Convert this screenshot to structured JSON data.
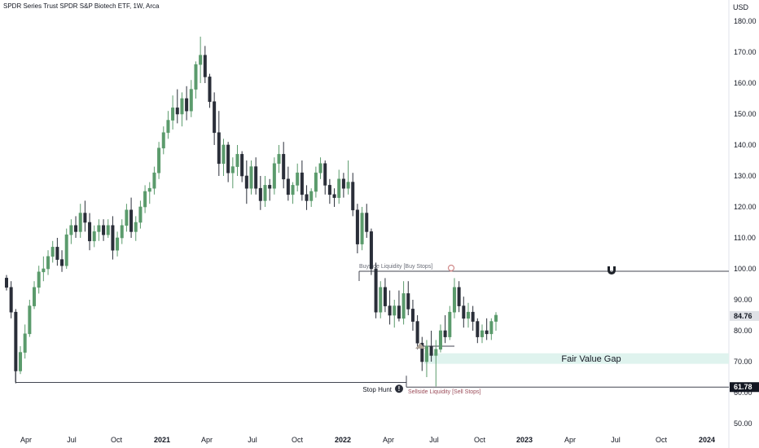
{
  "header": {
    "title": "SPDR Series Trust SPDR S&P Biotech ETF, 1W, Arca",
    "currency": "USD"
  },
  "colors": {
    "up": "#5b9b6c",
    "down": "#2a2e39",
    "fvg_fill": "#dff3ee",
    "line": "#434651",
    "price_badge": "#dfe1e6",
    "axis_text": "#131722"
  },
  "chart_data": {
    "type": "candlestick",
    "title": "SPDR Series Trust SPDR S&P Biotech ETF, 1W, Arca",
    "xlabel": "",
    "ylabel": "USD",
    "ylim": [
      47,
      183
    ],
    "x_ticks": [
      "Apr",
      "Jul",
      "Oct",
      "2021",
      "Apr",
      "Jul",
      "Oct",
      "2022",
      "Apr",
      "Jul",
      "Oct",
      "2023",
      "Apr",
      "Jul",
      "Oct",
      "2024"
    ],
    "y_ticks": [
      50,
      60,
      70,
      80,
      90,
      100,
      110,
      120,
      130,
      140,
      150,
      160,
      170,
      180
    ],
    "y_tick_labels": [
      "50.00",
      "60.00",
      "70.00",
      "80.00",
      "90.00",
      "100.00",
      "110.00",
      "120.00",
      "130.00",
      "140.00",
      "150.00",
      "160.00",
      "170.00",
      "180.00"
    ],
    "candles": [
      [
        97,
        98,
        93,
        94
      ],
      [
        94,
        96,
        84,
        86
      ],
      [
        86,
        87,
        63,
        67
      ],
      [
        67,
        75,
        66,
        73
      ],
      [
        73,
        82,
        71,
        79
      ],
      [
        79,
        90,
        78,
        88
      ],
      [
        88,
        96,
        87,
        94
      ],
      [
        94,
        101,
        92,
        99
      ],
      [
        99,
        104,
        96,
        100
      ],
      [
        100,
        106,
        98,
        104
      ],
      [
        104,
        109,
        102,
        107
      ],
      [
        107,
        110,
        101,
        103
      ],
      [
        103,
        106,
        99,
        101
      ],
      [
        101,
        113,
        100,
        111
      ],
      [
        111,
        116,
        108,
        114
      ],
      [
        114,
        117,
        110,
        112
      ],
      [
        112,
        121,
        110,
        118
      ],
      [
        118,
        122,
        112,
        115
      ],
      [
        115,
        118,
        106,
        109
      ],
      [
        109,
        114,
        107,
        112
      ],
      [
        112,
        116,
        109,
        114
      ],
      [
        114,
        116,
        109,
        111
      ],
      [
        111,
        116,
        110,
        114
      ],
      [
        114,
        117,
        103,
        106
      ],
      [
        106,
        112,
        104,
        110
      ],
      [
        110,
        116,
        108,
        114
      ],
      [
        114,
        121,
        112,
        119
      ],
      [
        119,
        123,
        110,
        112
      ],
      [
        112,
        117,
        109,
        115
      ],
      [
        115,
        122,
        113,
        120
      ],
      [
        120,
        127,
        118,
        125
      ],
      [
        125,
        128,
        121,
        126
      ],
      [
        126,
        133,
        124,
        131
      ],
      [
        131,
        141,
        129,
        139
      ],
      [
        139,
        146,
        137,
        144
      ],
      [
        144,
        151,
        142,
        148
      ],
      [
        148,
        156,
        145,
        152
      ],
      [
        152,
        158,
        147,
        150
      ],
      [
        150,
        157,
        146,
        155
      ],
      [
        155,
        159,
        148,
        151
      ],
      [
        151,
        161,
        149,
        158
      ],
      [
        158,
        167,
        155,
        166
      ],
      [
        166,
        175,
        160,
        169
      ],
      [
        169,
        172,
        160,
        162
      ],
      [
        162,
        163,
        152,
        154
      ],
      [
        154,
        157,
        140,
        144
      ],
      [
        144,
        151,
        130,
        134
      ],
      [
        134,
        142,
        130,
        140
      ],
      [
        140,
        141,
        128,
        131
      ],
      [
        131,
        136,
        126,
        133
      ],
      [
        133,
        140,
        130,
        137
      ],
      [
        137,
        138,
        128,
        130
      ],
      [
        130,
        135,
        121,
        126
      ],
      [
        126,
        135,
        124,
        133
      ],
      [
        133,
        136,
        124,
        126
      ],
      [
        126,
        130,
        119,
        122
      ],
      [
        122,
        130,
        120,
        127
      ],
      [
        127,
        129,
        122,
        126
      ],
      [
        126,
        136,
        124,
        134
      ],
      [
        134,
        140,
        131,
        137
      ],
      [
        137,
        141,
        126,
        129
      ],
      [
        129,
        133,
        122,
        124
      ],
      [
        124,
        128,
        121,
        127
      ],
      [
        127,
        134,
        125,
        131
      ],
      [
        131,
        135,
        122,
        124
      ],
      [
        124,
        127,
        119,
        122
      ],
      [
        122,
        126,
        120,
        125
      ],
      [
        125,
        133,
        123,
        131
      ],
      [
        131,
        136,
        129,
        134
      ],
      [
        134,
        135,
        124,
        127
      ],
      [
        127,
        129,
        121,
        124
      ],
      [
        124,
        126,
        120,
        123
      ],
      [
        123,
        132,
        121,
        129
      ],
      [
        129,
        131,
        123,
        126
      ],
      [
        126,
        135,
        124,
        128
      ],
      [
        128,
        131,
        117,
        119
      ],
      [
        119,
        121,
        105,
        108
      ],
      [
        108,
        120,
        106,
        118
      ],
      [
        118,
        121,
        110,
        112
      ],
      [
        112,
        113,
        98,
        100
      ],
      [
        100,
        102,
        84,
        86
      ],
      [
        86,
        96,
        84,
        94
      ],
      [
        94,
        97,
        86,
        88
      ],
      [
        88,
        93,
        82,
        85
      ],
      [
        85,
        90,
        81,
        88
      ],
      [
        88,
        93,
        83,
        84
      ],
      [
        84,
        96,
        82,
        92
      ],
      [
        92,
        96,
        85,
        87
      ],
      [
        87,
        90,
        80,
        83
      ],
      [
        83,
        85,
        74,
        76
      ],
      [
        76,
        78,
        67,
        70
      ],
      [
        70,
        77,
        65,
        75
      ],
      [
        75,
        80,
        70,
        72
      ],
      [
        72,
        77,
        62,
        74
      ],
      [
        74,
        82,
        73,
        80
      ],
      [
        80,
        85,
        76,
        78
      ],
      [
        78,
        88,
        77,
        86
      ],
      [
        86,
        97,
        84,
        94
      ],
      [
        94,
        96,
        86,
        88
      ],
      [
        88,
        91,
        81,
        84
      ],
      [
        84,
        89,
        81,
        86
      ],
      [
        86,
        88,
        80,
        83
      ],
      [
        83,
        84,
        76,
        78
      ],
      [
        78,
        82,
        76,
        80
      ],
      [
        80,
        84,
        77,
        79
      ],
      [
        79,
        84,
        77,
        83
      ],
      [
        83,
        86,
        80,
        85
      ]
    ],
    "levels": [
      {
        "label": "Buyside Liquidity [Buy Stops]",
        "price": 99.2
      },
      {
        "label": "Sellside Liquidity [Sell Stops]",
        "price": 61.78
      },
      {
        "label": "",
        "price": 63.3
      }
    ],
    "annotations": {
      "fvg_label": "Fair Value Gap",
      "fvg_range": [
        69.3,
        72.7
      ],
      "stop_hunt": "Stop Hunt",
      "stop_hunt_marker": "!",
      "magnet_icon": "magnet-icon",
      "bulb_icon": "lightbulb-icon",
      "arrow_icon": "arrow-up-icon"
    },
    "price_labels": [
      {
        "text": "84.76",
        "price": 84.76
      },
      {
        "text": "61.78",
        "price": 61.78
      }
    ],
    "grid": false
  }
}
